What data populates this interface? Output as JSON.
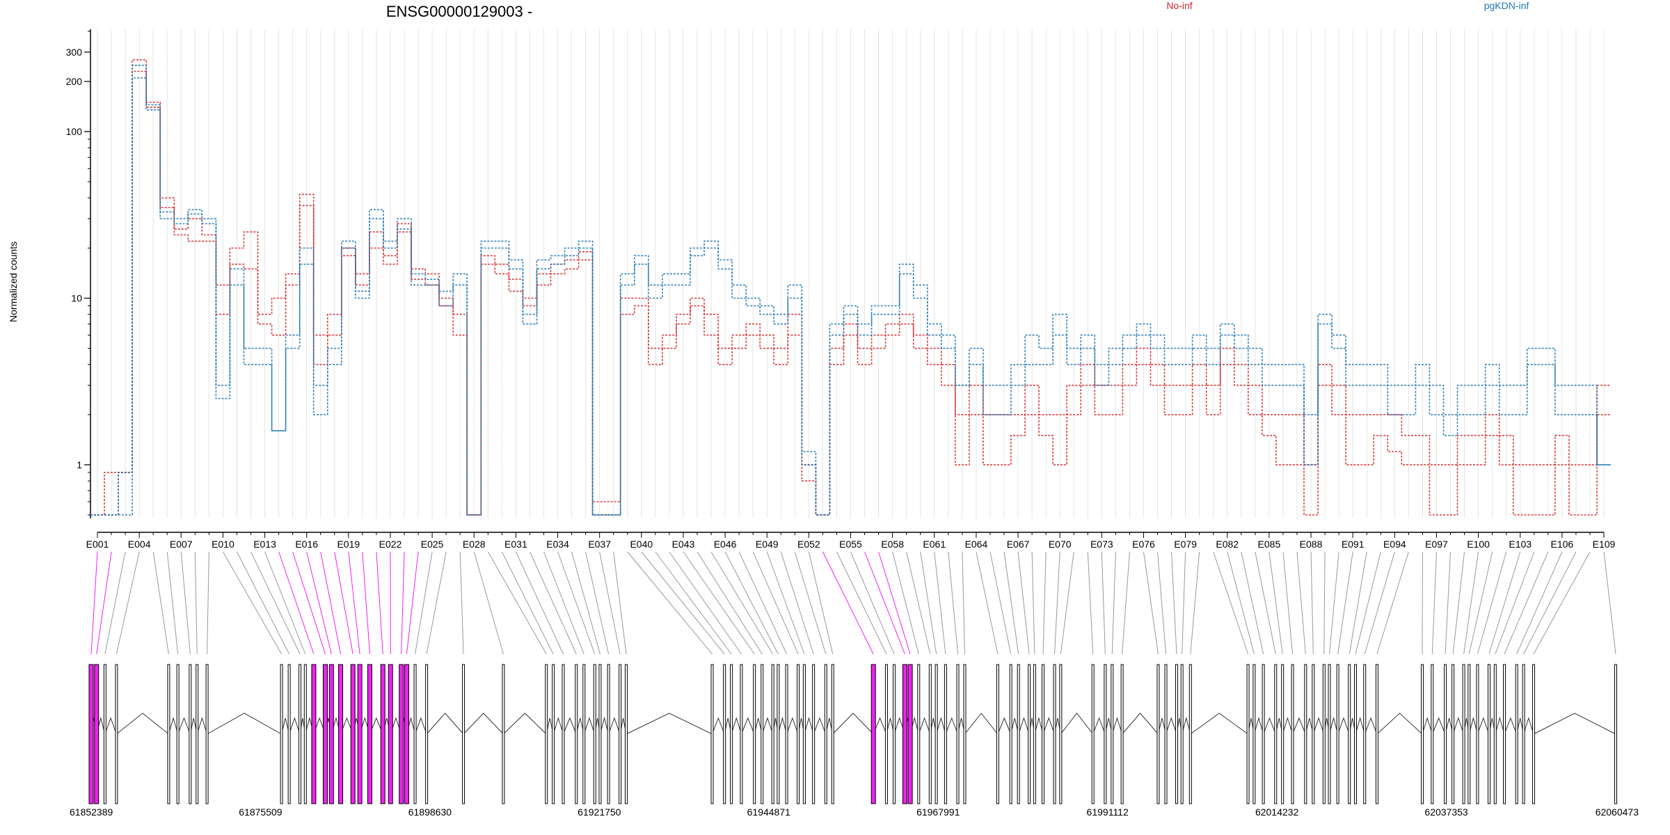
{
  "chart_data": {
    "type": "line",
    "title": "ENSG00000129003 -",
    "ylabel": "Normalized counts",
    "y_scale": "log",
    "ylim": [
      0.5,
      400
    ],
    "y_ticks": [
      1,
      10,
      100,
      200,
      300
    ],
    "grid": "vertical",
    "legend_position": "top-right",
    "exon_count": 109,
    "exon_tick_labels": [
      "E001",
      "E004",
      "E007",
      "E010",
      "E013",
      "E016",
      "E019",
      "E022",
      "E025",
      "E028",
      "E031",
      "E034",
      "E037",
      "E040",
      "E043",
      "E046",
      "E049",
      "E052",
      "E055",
      "E058",
      "E061",
      "E064",
      "E067",
      "E070",
      "E073",
      "E076",
      "E079",
      "E082",
      "E085",
      "E088",
      "E091",
      "E094",
      "E097",
      "E100",
      "E103",
      "E106",
      "E109"
    ],
    "genomic_axis_labels": [
      "61852389",
      "61875509",
      "61898630",
      "61921750",
      "61944871",
      "61967991",
      "61991112",
      "62014232",
      "62037353",
      "62060473"
    ],
    "series": [
      {
        "name": "No-inf",
        "color": "#d62728",
        "values": [
          0.5,
          0.9,
          0.9,
          270,
          150,
          40,
          24,
          22,
          22,
          8,
          16,
          15,
          7,
          6,
          12,
          42,
          4,
          6,
          18,
          12,
          20,
          16,
          25,
          13,
          12,
          9,
          6,
          0.5,
          16,
          14,
          11,
          9,
          12,
          14,
          15,
          17,
          0.6,
          0.6,
          8,
          9,
          4,
          5,
          7,
          9,
          6,
          4,
          5,
          6,
          5,
          4,
          6,
          0.8,
          0.5,
          4,
          6,
          4,
          5,
          6,
          7,
          5,
          4,
          3,
          1,
          2,
          1,
          1,
          1.5,
          2,
          1.5,
          1,
          2,
          3,
          2,
          2,
          3,
          4,
          3,
          2,
          2,
          3,
          2,
          4,
          3,
          2,
          1.5,
          1,
          1,
          0.5,
          3,
          2,
          1,
          1,
          1.5,
          1.2,
          1,
          1,
          0.5,
          0.5,
          1,
          1,
          1.5,
          1,
          0.5,
          0.5,
          0.5,
          1,
          0.5,
          0.5,
          3
        ]
      },
      {
        "name": "No-inf",
        "color": "#d62728",
        "values": [
          0.5,
          0.5,
          0.9,
          230,
          140,
          35,
          26,
          30,
          24,
          12,
          20,
          25,
          8,
          10,
          14,
          36,
          6,
          8,
          20,
          14,
          25,
          18,
          28,
          15,
          14,
          10,
          8,
          0.5,
          18,
          16,
          13,
          10,
          14,
          16,
          17,
          19,
          0.5,
          0.5,
          10,
          10,
          5,
          6,
          8,
          10,
          8,
          5,
          6,
          7,
          6,
          5,
          8,
          1,
          0.5,
          5,
          7,
          5,
          6,
          7,
          8,
          6,
          5,
          4,
          2,
          3,
          2,
          2,
          2,
          3,
          2,
          2,
          3,
          4,
          3,
          3,
          4,
          5,
          4,
          3,
          3,
          4,
          3,
          5,
          4,
          3,
          2,
          2,
          2,
          1,
          4,
          3,
          2,
          2,
          2,
          2,
          1.5,
          1.5,
          1,
          1,
          1.5,
          1.5,
          2,
          1.5,
          1,
          1,
          1,
          1.5,
          1,
          1,
          2
        ]
      },
      {
        "name": "pgKDN-inf",
        "color": "#1f77b4",
        "values": [
          0.5,
          0.5,
          0.9,
          250,
          145,
          33,
          30,
          34,
          30,
          3,
          15,
          5,
          5,
          1.6,
          6,
          20,
          3,
          5,
          20,
          11,
          30,
          22,
          30,
          14,
          13,
          11,
          14,
          0.5,
          20,
          20,
          15,
          8,
          17,
          18,
          20,
          22,
          0.5,
          0.5,
          12,
          16,
          10,
          12,
          12,
          18,
          20,
          15,
          10,
          9,
          8,
          7,
          10,
          1,
          0.5,
          6,
          8,
          6,
          8,
          8,
          14,
          10,
          6,
          5,
          3,
          4,
          2,
          2,
          3,
          4,
          4,
          6,
          4,
          5,
          3,
          4,
          5,
          6,
          5,
          4,
          4,
          5,
          4,
          6,
          5,
          4,
          3,
          3,
          3,
          1,
          7,
          5,
          3,
          3,
          3,
          2,
          2,
          3,
          2,
          1.5,
          2,
          2,
          3,
          2,
          2,
          4,
          4,
          2,
          2,
          2,
          1
        ]
      },
      {
        "name": "pgKDN-inf",
        "color": "#1f77b4",
        "values": [
          0.5,
          0.5,
          0.5,
          210,
          135,
          30,
          28,
          32,
          28,
          2.5,
          12,
          4,
          4,
          1.6,
          5,
          16,
          2,
          4,
          22,
          10,
          34,
          20,
          26,
          12,
          12,
          9,
          12,
          0.5,
          22,
          22,
          17,
          7,
          15,
          16,
          18,
          20,
          0.5,
          0.5,
          14,
          18,
          12,
          14,
          14,
          20,
          22,
          17,
          12,
          10,
          9,
          8,
          12,
          1.2,
          0.5,
          7,
          9,
          7,
          9,
          9,
          16,
          12,
          7,
          6,
          3,
          5,
          3,
          3,
          4,
          6,
          5,
          8,
          5,
          6,
          4,
          5,
          6,
          7,
          6,
          5,
          5,
          6,
          5,
          7,
          6,
          5,
          4,
          4,
          4,
          2,
          8,
          6,
          4,
          4,
          4,
          3,
          3,
          4,
          3,
          2,
          3,
          3,
          4,
          3,
          3,
          5,
          5,
          3,
          3,
          3,
          1
        ]
      }
    ]
  },
  "legend": {
    "items": [
      {
        "label": "No-inf",
        "color": "#d62728"
      },
      {
        "label": "pgKDN-inf",
        "color": "#1f77b4"
      }
    ]
  },
  "gene_model": {
    "highlight_color": "#ee22ee",
    "highlighted_exons": [
      1,
      2,
      14,
      15,
      16,
      17,
      18,
      19,
      20,
      21,
      22,
      23,
      24,
      53,
      56,
      57
    ]
  }
}
